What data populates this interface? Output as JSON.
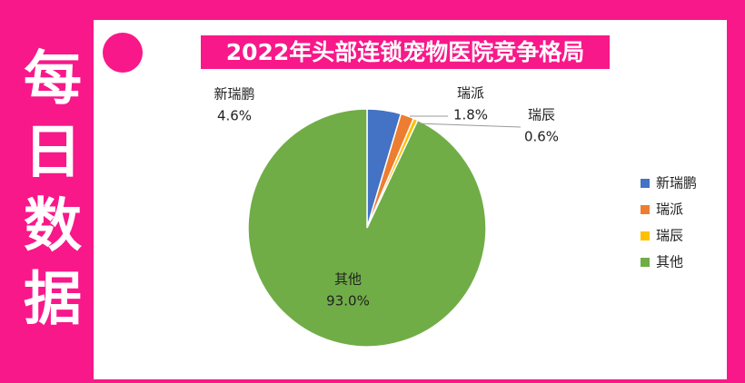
{
  "sidebar": "每日数据",
  "chart_data": {
    "type": "pie",
    "title": "2022年头部连锁宠物医院竞争格局",
    "categories": [
      "新瑞鹏",
      "瑞派",
      "瑞辰",
      "其他"
    ],
    "values": [
      4.6,
      1.8,
      0.6,
      93.0
    ],
    "value_labels": [
      "4.6%",
      "1.8%",
      "0.6%",
      "93.0%"
    ],
    "colors": [
      "#4472c4",
      "#ed7d31",
      "#ffc000",
      "#70ad47"
    ],
    "legend": "right"
  }
}
